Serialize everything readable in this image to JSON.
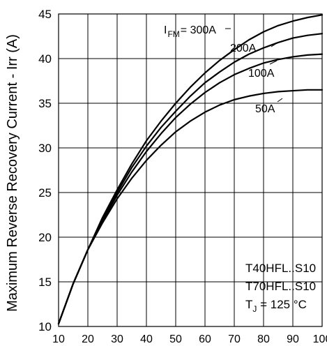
{
  "chart_data": {
    "type": "line",
    "ylabel": "Maximum Reverse Recovery Current - Irr (A)",
    "xlabel": "",
    "xlim": [
      10,
      100
    ],
    "ylim": [
      10,
      45
    ],
    "xticks": [
      10,
      20,
      30,
      40,
      50,
      60,
      70,
      80,
      90,
      100
    ],
    "xtick_labels": [
      "10",
      "20",
      "30",
      "40",
      "50",
      "60",
      "70",
      "80",
      "90",
      "100"
    ],
    "yticks": [
      10,
      15,
      20,
      25,
      30,
      35,
      40,
      45
    ],
    "ytick_labels": [
      "10",
      "15",
      "20",
      "25",
      "30",
      "35",
      "40",
      "45"
    ],
    "grid": true,
    "legend_label_prefix": "I",
    "legend_label_sub": "FM",
    "series": [
      {
        "name": "300A",
        "x": [
          10,
          15,
          20,
          25,
          30,
          35,
          40,
          45,
          50,
          55,
          60,
          65,
          70,
          75,
          80,
          85,
          90,
          95,
          100
        ],
        "y": [
          10.3,
          14.8,
          18.6,
          22.2,
          25.3,
          28.2,
          30.8,
          33.0,
          35.0,
          36.8,
          38.4,
          39.8,
          41.0,
          42.1,
          43.0,
          43.7,
          44.2,
          44.6,
          44.9
        ]
      },
      {
        "name": "200A",
        "x": [
          10,
          15,
          20,
          25,
          30,
          35,
          40,
          45,
          50,
          55,
          60,
          65,
          70,
          75,
          80,
          85,
          90,
          95,
          100
        ],
        "y": [
          10.3,
          14.8,
          18.6,
          22.0,
          25.0,
          27.8,
          30.2,
          32.3,
          34.1,
          35.8,
          37.3,
          38.5,
          39.6,
          40.5,
          41.2,
          41.8,
          42.3,
          42.6,
          42.8
        ]
      },
      {
        "name": "100A",
        "x": [
          10,
          15,
          20,
          25,
          30,
          35,
          40,
          45,
          50,
          55,
          60,
          65,
          70,
          75,
          80,
          85,
          90,
          95,
          100
        ],
        "y": [
          10.3,
          14.8,
          18.6,
          21.8,
          24.7,
          27.3,
          29.6,
          31.6,
          33.4,
          34.9,
          36.2,
          37.3,
          38.2,
          38.9,
          39.5,
          39.9,
          40.2,
          40.4,
          40.5
        ]
      },
      {
        "name": "50A",
        "x": [
          10,
          15,
          20,
          25,
          30,
          35,
          40,
          45,
          50,
          55,
          60,
          65,
          70,
          75,
          80,
          85,
          90,
          95,
          100
        ],
        "y": [
          10.3,
          14.8,
          18.6,
          21.6,
          24.3,
          26.6,
          28.6,
          30.3,
          31.8,
          33.0,
          34.0,
          34.8,
          35.4,
          35.8,
          36.1,
          36.3,
          36.4,
          36.5,
          36.5
        ]
      }
    ],
    "annotations": [
      "T40HFL..S10",
      "T70HFL..S10"
    ],
    "tj_label_prefix": "T",
    "tj_label_sub": "J",
    "tj_label_suffix": " = 125 °C"
  }
}
